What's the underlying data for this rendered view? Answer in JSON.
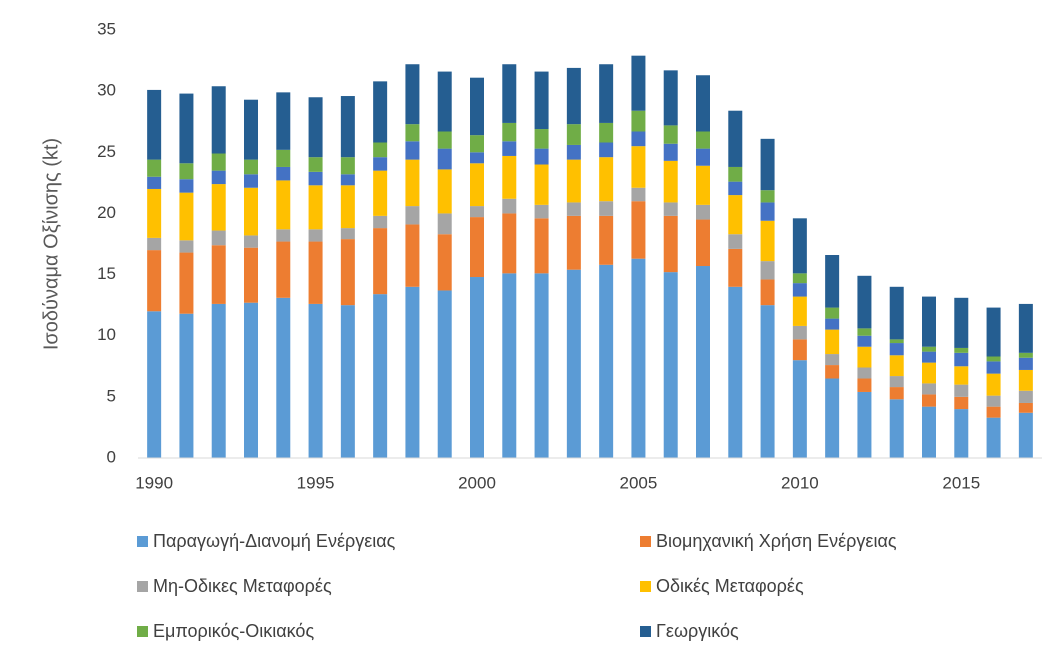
{
  "chart_data": {
    "type": "stacked_bar",
    "y_label": "Ισοδύναμα Οξίνισης (kt)",
    "categories": [
      "1990",
      null,
      null,
      null,
      null,
      "1995",
      null,
      null,
      null,
      null,
      "2000",
      null,
      null,
      null,
      null,
      "2005",
      null,
      null,
      null,
      null,
      "2010",
      null,
      null,
      null,
      null,
      "2015",
      null,
      null
    ],
    "series": [
      {
        "name": "Παραγωγή-Διανομή Ενέργειας",
        "color": "#5b9bd5",
        "values": [
          12,
          11.8,
          12.6,
          12.7,
          13.1,
          12.6,
          12.5,
          13.4,
          14.0,
          13.7,
          14.8,
          15.1,
          15.1,
          15.4,
          15.8,
          16.3,
          15.2,
          15.7,
          14.0,
          12.5,
          8.0,
          6.5,
          5.4,
          4.8,
          4.2,
          4.0,
          3.3,
          3.7
        ]
      },
      {
        "name": "Βιομηχανική Χρήση Ενέργειας",
        "color": "#ed7d31",
        "values": [
          5.0,
          5.0,
          4.8,
          4.5,
          4.6,
          5.1,
          5.4,
          5.4,
          5.1,
          4.6,
          4.9,
          4.9,
          4.5,
          4.4,
          4.0,
          4.7,
          4.6,
          3.8,
          3.1,
          2.1,
          1.7,
          1.1,
          1.1,
          1.0,
          1.0,
          1.0,
          0.9,
          0.8
        ]
      },
      {
        "name": "Μη-Οδικες Μεταφορές",
        "color": "#a5a5a5",
        "values": [
          1.0,
          1.0,
          1.2,
          1.0,
          1.0,
          1.0,
          0.9,
          1.0,
          1.5,
          1.7,
          0.9,
          1.2,
          1.1,
          1.1,
          1.2,
          1.1,
          1.1,
          1.2,
          1.2,
          1.5,
          1.1,
          0.9,
          0.9,
          0.9,
          0.9,
          1.0,
          0.9,
          1.0
        ]
      },
      {
        "name": "Οδικές Μεταφορές",
        "color": "#ffc000",
        "values": [
          4.0,
          3.9,
          3.8,
          3.9,
          4.0,
          3.6,
          3.5,
          3.7,
          3.8,
          3.6,
          3.5,
          3.5,
          3.3,
          3.5,
          3.6,
          3.4,
          3.4,
          3.2,
          3.2,
          3.3,
          2.4,
          2.0,
          1.7,
          1.7,
          1.7,
          1.5,
          1.8,
          1.7
        ]
      },
      {
        "color": "#4472c4",
        "values": [
          1.0,
          1.1,
          1.1,
          1.1,
          1.1,
          1.1,
          0.9,
          1.1,
          1.5,
          1.7,
          0.9,
          1.2,
          1.3,
          1.2,
          1.2,
          1.2,
          1.4,
          1.4,
          1.1,
          1.5,
          1.1,
          0.9,
          0.9,
          1.0,
          0.9,
          1.1,
          1.0,
          1.0
        ]
      },
      {
        "name": "Εμπορικός-Οικιακός",
        "color": "#70ad47",
        "values": [
          1.4,
          1.3,
          1.4,
          1.2,
          1.4,
          1.2,
          1.4,
          1.2,
          1.4,
          1.4,
          1.4,
          1.5,
          1.6,
          1.7,
          1.6,
          1.7,
          1.5,
          1.4,
          1.2,
          1.0,
          0.8,
          0.9,
          0.6,
          0.3,
          0.4,
          0.4,
          0.4,
          0.4
        ]
      },
      {
        "name": "Γεωργικός",
        "color": "#255e91",
        "values": [
          5.7,
          5.7,
          5.5,
          4.9,
          4.7,
          4.9,
          5.0,
          5.0,
          4.9,
          4.9,
          4.7,
          4.8,
          4.7,
          4.6,
          4.8,
          4.5,
          4.5,
          4.6,
          4.6,
          4.2,
          4.5,
          4.3,
          4.3,
          4.3,
          4.1,
          4.1,
          4.0,
          4.0
        ]
      }
    ],
    "ylim": [
      0,
      35
    ],
    "yticks": [
      0,
      5,
      10,
      15,
      20,
      25,
      30,
      35
    ],
    "grid": false
  }
}
